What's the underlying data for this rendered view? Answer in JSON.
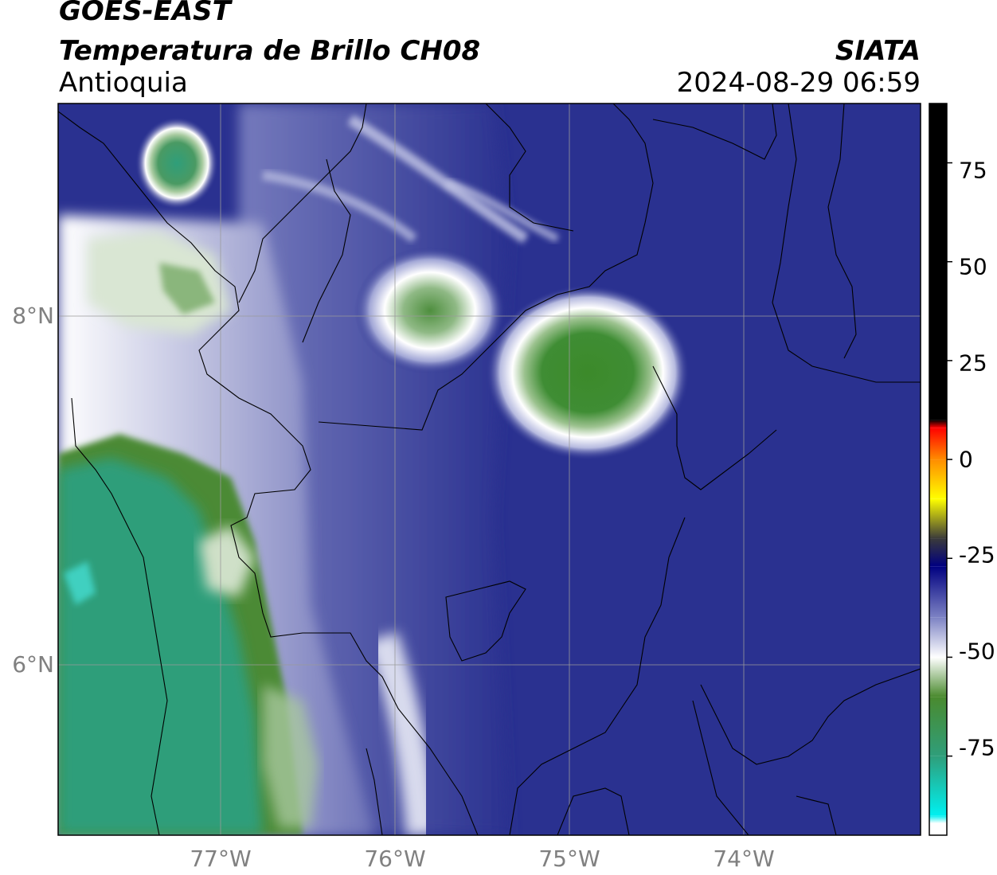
{
  "header": {
    "line1": "GOES-EAST",
    "line2": "Temperatura de Brillo CH08",
    "region": "Antioquia",
    "organization": "SIATA",
    "datetime": "2024-08-29 06:59"
  },
  "map": {
    "lat_ticks": [
      "8°N",
      "6°N"
    ],
    "lon_ticks": [
      "77°W",
      "76°W",
      "75°W",
      "74°W"
    ],
    "background_color": "#2a3190",
    "gridline_color": "#9a9a9a"
  },
  "colorbar": {
    "tick_labels": [
      "75",
      "50",
      "25",
      "0",
      "-25",
      "-50",
      "-75"
    ],
    "range": [
      -95,
      90
    ],
    "stops": [
      {
        "value": 90,
        "color": "#000000"
      },
      {
        "value": 10,
        "color": "#000000"
      },
      {
        "value": 8,
        "color": "#ff0000"
      },
      {
        "value": 0,
        "color": "#ff8c00"
      },
      {
        "value": -10,
        "color": "#ffff00"
      },
      {
        "value": -20,
        "color": "#3a3a3a"
      },
      {
        "value": -27,
        "color": "#000080"
      },
      {
        "value": -40,
        "color": "#7d83c4"
      },
      {
        "value": -50,
        "color": "#ffffff"
      },
      {
        "value": -60,
        "color": "#4a8a2e"
      },
      {
        "value": -75,
        "color": "#2f9e7a"
      },
      {
        "value": -90,
        "color": "#00f0f0"
      },
      {
        "value": -92,
        "color": "#ffffff"
      }
    ]
  }
}
